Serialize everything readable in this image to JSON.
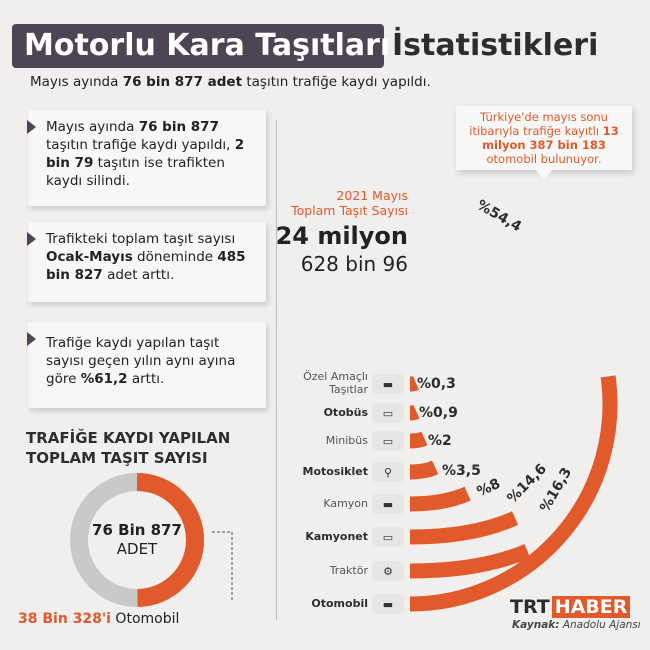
{
  "header": {
    "title_part1": "Motorlu Kara Taşıtları",
    "title_part2": "İstatistikleri",
    "subtitle_pre": "Mayıs ayında ",
    "subtitle_bold": "76 bin 877 adet",
    "subtitle_post": " taşıtın trafiğe kaydı yapıldı."
  },
  "cards": [
    {
      "a": "Mayıs ayında ",
      "b": "76 bin 877",
      "c": " taşıtın trafiğe kaydı yapıldı, ",
      "d": "2 bin 79",
      "e": " taşıtın ise trafikten kaydı silindi."
    },
    {
      "a": "Trafikteki toplam taşıt sayısı ",
      "b": "Ocak-Mayıs",
      "c": " döneminde ",
      "d": "485 bin 827",
      "e": " adet arttı."
    },
    {
      "a": "Trafiğe kaydı yapılan taşıt sayısı geçen yılın aynı ayına göre ",
      "b": "%61,2",
      "c": " arttı.",
      "d": "",
      "e": ""
    }
  ],
  "donut": {
    "title_line1": "TRAFİĞE KAYDI YAPILAN",
    "title_line2": "TOPLAM TAŞIT SAYISI",
    "center_bold": "76 Bin 877",
    "center_unit": "ADET",
    "caption_highlight": "38 Bin 328'i",
    "caption_rest": " Otomobil",
    "total": 76877,
    "highlight_value": 38328,
    "colors": {
      "highlight": "#e05a2b",
      "rest": "#c9c9c9"
    }
  },
  "stats": {
    "label_line1": "2021 Mayıs",
    "label_line2": "Toplam Taşıt Sayısı",
    "value_line1": "24 milyon",
    "value_line2": "628 bin 96"
  },
  "callout": {
    "text_pre": "Türkiye'de mayıs sonu itibarıyla trafiğe kayıtlı ",
    "text_bold": "13 milyon 387 bin 183",
    "text_post": " otomobil bulunuyor."
  },
  "chart_data": {
    "type": "bar",
    "subtype": "radial",
    "categories": [
      "Özel Amaçlı Taşıtlar",
      "Otobüs",
      "Minibüs",
      "Motosiklet",
      "Kamyon",
      "Kamyonet",
      "Traktör",
      "Otomobil"
    ],
    "values": [
      0.3,
      0.9,
      2,
      3.5,
      8,
      14.6,
      16.3,
      54.4
    ],
    "value_labels": [
      "%0,3",
      "%0,9",
      "%2",
      "%3,5",
      "%8",
      "%14,6",
      "%16,3",
      "%54,4"
    ],
    "bold_categories": [
      "Otobüs",
      "Motosiklet",
      "Kamyonet",
      "Otomobil"
    ],
    "icons": [
      "concrete-mixer-icon",
      "bus-icon",
      "minibus-icon",
      "motorcycle-icon",
      "truck-icon",
      "pickup-truck-icon",
      "tractor-icon",
      "car-icon"
    ],
    "bar_color": "#e05a2b"
  },
  "brand": {
    "trt": "TRT",
    "haber": "HABER"
  },
  "source": {
    "label": "Kaynak:",
    "value": " Anadolu Ajansı"
  }
}
